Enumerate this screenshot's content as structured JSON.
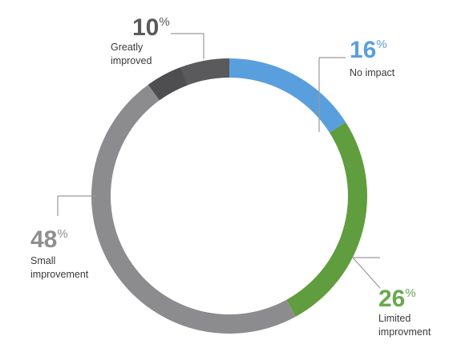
{
  "chart_data": {
    "type": "pie",
    "title": "",
    "slices": [
      {
        "label": "No impact",
        "label_lines": [
          "No impact"
        ],
        "value": 16,
        "color": "#5a9fdd",
        "label_color": "#5a9fdd"
      },
      {
        "label": "Limited improvment",
        "label_lines": [
          "Limited",
          "improvment"
        ],
        "value": 26,
        "color": "#5f9d3e",
        "label_color": "#6aa84f"
      },
      {
        "label": "Small improvement",
        "label_lines": [
          "Small",
          "improvement"
        ],
        "value": 48,
        "color": "#8c8c8e",
        "label_color": "#8f8f8f"
      },
      {
        "label": "Greatly improved",
        "label_lines": [
          "Greatly",
          "improved"
        ],
        "value": 10,
        "color": "#5a5a5c",
        "label_color": "#5a5a5c"
      }
    ]
  }
}
